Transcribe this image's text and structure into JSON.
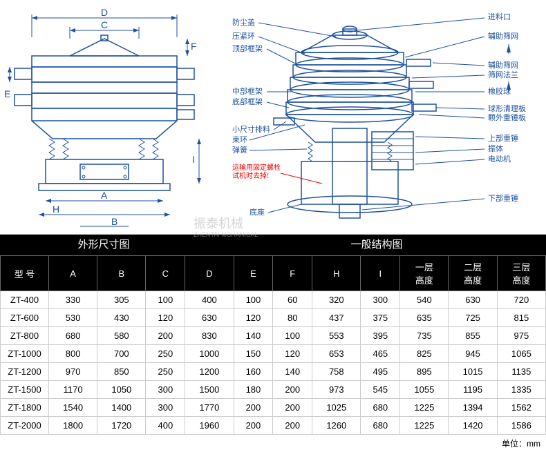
{
  "diagrams": {
    "left_title": "外形尺寸图",
    "right_title": "一般结构图",
    "dim_labels": {
      "A": "A",
      "B": "B",
      "C": "C",
      "D": "D",
      "E": "E",
      "F": "F",
      "H": "H",
      "I": "I"
    },
    "structure_labels": {
      "dust_cover": "防尘盖",
      "inlet": "进料口",
      "clamp_ring": "压紧环",
      "aux_screen": "辅助筛网",
      "top_frame": "顶部框架",
      "aux_screen2": "辅助筛网",
      "screen_flange": "筛网法兰",
      "rubber_ball": "橡胶球",
      "mid_frame": "中部框架",
      "bottom_frame": "底部框架",
      "ball_clean": "球形清理板",
      "coarse_hammer": "颗外重锤板",
      "small_outlet": "小尺寸排料",
      "upper_weight": "上部重锤",
      "tie_ring": "束环",
      "vibrator": "振体",
      "spring": "弹簧",
      "motor": "电动机",
      "red_warning": "运输用固定螺栓\n试机时去掉!",
      "lower_weight": "下部重锤",
      "base": "底座"
    },
    "colors": {
      "line": "#1e50a0",
      "fill_light": "#a8c5e8",
      "fill_dark": "#6b9bd1",
      "red": "#e00000"
    }
  },
  "table": {
    "headers": [
      "型 号",
      "A",
      "B",
      "C",
      "D",
      "E",
      "F",
      "H",
      "I",
      "一层\n高度",
      "二层\n高度",
      "三层\n高度"
    ],
    "rows": [
      [
        "ZT-400",
        "330",
        "305",
        "100",
        "400",
        "100",
        "60",
        "320",
        "300",
        "540",
        "630",
        "720"
      ],
      [
        "ZT-600",
        "530",
        "430",
        "120",
        "630",
        "120",
        "80",
        "437",
        "375",
        "635",
        "725",
        "815"
      ],
      [
        "ZT-800",
        "680",
        "580",
        "200",
        "830",
        "140",
        "100",
        "553",
        "395",
        "735",
        "855",
        "975"
      ],
      [
        "ZT-1000",
        "800",
        "700",
        "250",
        "1000",
        "150",
        "120",
        "653",
        "465",
        "825",
        "945",
        "1065"
      ],
      [
        "ZT-1200",
        "970",
        "850",
        "250",
        "1200",
        "160",
        "140",
        "758",
        "495",
        "895",
        "1015",
        "1135"
      ],
      [
        "ZT-1500",
        "1170",
        "1050",
        "300",
        "1500",
        "180",
        "200",
        "973",
        "545",
        "1055",
        "1195",
        "1335"
      ],
      [
        "ZT-1800",
        "1540",
        "1400",
        "300",
        "1770",
        "200",
        "200",
        "1025",
        "680",
        "1225",
        "1394",
        "1562"
      ],
      [
        "ZT-2000",
        "1800",
        "1720",
        "400",
        "1960",
        "200",
        "200",
        "1260",
        "680",
        "1225",
        "1420",
        "1586"
      ]
    ],
    "unit_label": "单位：mm"
  },
  "watermark": {
    "main": "振泰机械",
    "sub": "ZHENTAI MCHANICAL"
  }
}
